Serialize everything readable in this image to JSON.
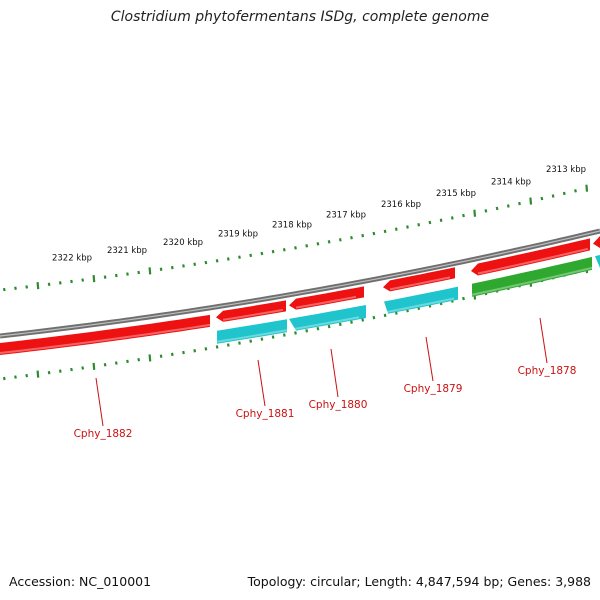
{
  "title": "Clostridium phytofermentans ISDg, complete genome",
  "footer": {
    "accession": "Accession: NC_010001",
    "summary": "Topology: circular; Length: 4,847,594 bp; Genes: 3,988"
  },
  "scale_labels": [
    "2313 kbp",
    "2314 kbp",
    "2315 kbp",
    "2316 kbp",
    "2317 kbp",
    "2318 kbp",
    "2319 kbp",
    "2320 kbp",
    "2321 kbp",
    "2322 kbp"
  ],
  "gene_labels": [
    "Cphy_1878",
    "Cphy_1879",
    "Cphy_1880",
    "Cphy_1881",
    "Cphy_1882"
  ],
  "colors": {
    "tick": "#2e8b2e",
    "backbone": "#808080",
    "forward_gene": "#ee1111",
    "reverse_gene": "#20c4cc",
    "rna_gene": "#2ea82e",
    "label": "#cc1111"
  }
}
